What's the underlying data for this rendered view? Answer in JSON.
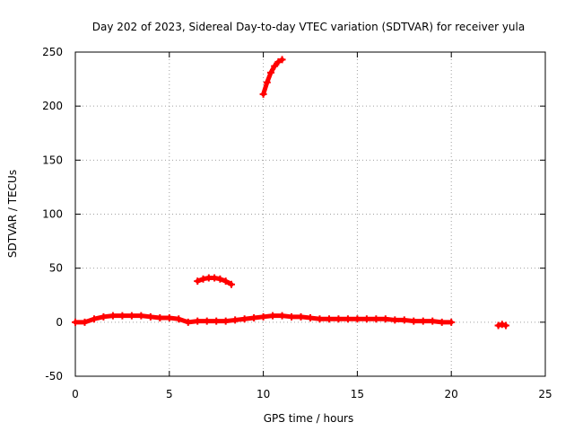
{
  "chart_data": {
    "type": "scatter",
    "title": "Day 202 of 2023, Sidereal Day-to-day VTEC variation (SDTVAR) for receiver yula",
    "xlabel": "GPS time / hours",
    "ylabel": "SDTVAR / TECUs",
    "xlim": [
      0,
      25
    ],
    "ylim": [
      -50,
      250
    ],
    "xticks": [
      0,
      5,
      10,
      15,
      20,
      25
    ],
    "yticks": [
      -50,
      0,
      50,
      100,
      150,
      200,
      250
    ],
    "xtick_labels": [
      "0",
      "5",
      "10",
      "15",
      "20",
      "25"
    ],
    "ytick_labels": [
      "-50",
      "0",
      "50",
      "100",
      "150",
      "200",
      "250"
    ],
    "grid": true,
    "legend": "none",
    "series": [
      {
        "name": "SDTVAR main",
        "color": "#ff0000",
        "x": [
          0.0,
          0.5,
          1.0,
          1.5,
          2.0,
          2.5,
          3.0,
          3.5,
          4.0,
          4.5,
          5.0,
          5.5,
          6.0,
          6.5,
          7.0,
          7.5,
          8.0,
          8.5,
          9.0,
          9.5,
          10.0,
          10.5,
          11.0,
          11.5,
          12.0,
          12.5,
          13.0,
          13.5,
          14.0,
          14.5,
          15.0,
          15.5,
          16.0,
          16.5,
          17.0,
          17.5,
          18.0,
          18.5,
          19.0,
          19.5,
          20.0
        ],
        "y": [
          0,
          0,
          3,
          5,
          6,
          6,
          6,
          6,
          5,
          4,
          4,
          3,
          0,
          1,
          1,
          1,
          1,
          2,
          3,
          4,
          5,
          6,
          6,
          5,
          5,
          4,
          3,
          3,
          3,
          3,
          3,
          3,
          3,
          3,
          2,
          2,
          1,
          1,
          1,
          0,
          0
        ]
      },
      {
        "name": "SDTVAR arc 1",
        "color": "#ff0000",
        "x": [
          6.5,
          6.8,
          7.1,
          7.4,
          7.7,
          8.0,
          8.3
        ],
        "y": [
          38,
          40,
          41,
          41,
          40,
          38,
          35
        ]
      },
      {
        "name": "SDTVAR arc 2",
        "color": "#ff0000",
        "x": [
          10.0,
          10.2,
          10.4,
          10.6,
          10.8,
          11.0
        ],
        "y": [
          211,
          222,
          231,
          237,
          241,
          243
        ]
      },
      {
        "name": "SDTVAR short",
        "color": "#ff0000",
        "x": [
          22.5,
          22.7,
          22.9
        ],
        "y": [
          -3,
          -2,
          -3
        ]
      }
    ]
  }
}
